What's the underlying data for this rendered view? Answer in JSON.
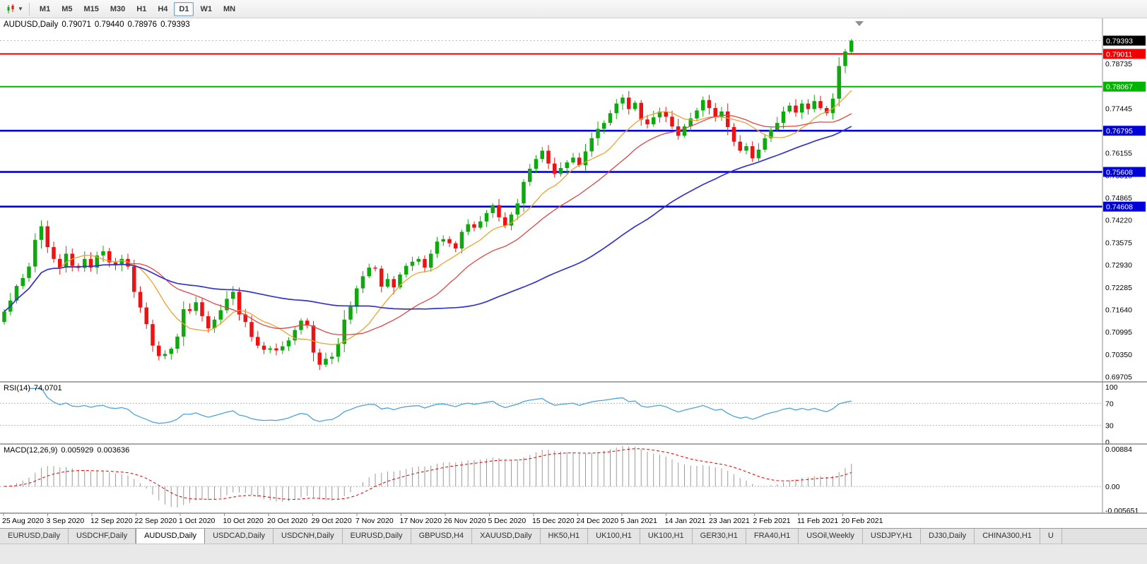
{
  "toolbar": {
    "chart_type_icon": "candlestick-chart-icon",
    "timeframes": [
      "M1",
      "M5",
      "M15",
      "M30",
      "H1",
      "H4",
      "D1",
      "W1",
      "MN"
    ],
    "active_timeframe": "D1"
  },
  "chart": {
    "header": {
      "symbol": "AUDUSD,Daily",
      "open": "0.79071",
      "high": "0.79440",
      "low": "0.78976",
      "close": "0.79393"
    },
    "current_price": {
      "label": "0.79393",
      "box_color": "#000000"
    },
    "price_axis_ticks": [
      "0.79380",
      "0.78735",
      "0.78090",
      "0.77445",
      "0.76800",
      "0.76155",
      "0.75510",
      "0.74865",
      "0.74220",
      "0.73575",
      "0.72930",
      "0.72285",
      "0.71640",
      "0.70995",
      "0.70350",
      "0.69705"
    ],
    "hlines": [
      {
        "label": "0.79011",
        "price": 0.79011,
        "color": "#f00000",
        "thickness": 2
      },
      {
        "label": "0.78067",
        "price": 0.78067,
        "color": "#00b400",
        "thickness": 2
      },
      {
        "label": "0.76795",
        "price": 0.76795,
        "color": "#0000d8",
        "thickness": 2.6
      },
      {
        "label": "0.75608",
        "price": 0.75608,
        "color": "#0000d8",
        "thickness": 2.6
      },
      {
        "label": "0.74608",
        "price": 0.74608,
        "color": "#0000d8",
        "thickness": 2.6
      }
    ],
    "date_labels": [
      "25 Aug 2020",
      "3 Sep 2020",
      "12 Sep 2020",
      "22 Sep 2020",
      "1 Oct 2020",
      "10 Oct 2020",
      "20 Oct 2020",
      "29 Oct 2020",
      "7 Nov 2020",
      "17 Nov 2020",
      "26 Nov 2020",
      "5 Dec 2020",
      "15 Dec 2020",
      "24 Dec 2020",
      "5 Jan 2021",
      "14 Jan 2021",
      "23 Jan 2021",
      "2 Feb 2021",
      "11 Feb 2021",
      "20 Feb 2021"
    ]
  },
  "rsi_panel": {
    "title": "RSI(14)",
    "value": "74.0701",
    "levels": [
      "100",
      "70",
      "30",
      "0"
    ],
    "level_values": [
      100,
      70,
      30,
      0
    ],
    "line_color": "#4da2dc"
  },
  "macd_panel": {
    "title": "MACD(12,26,9)",
    "value_main": "0.005929",
    "value_signal": "0.003636",
    "levels": [
      "0.00884",
      "0.00",
      "-0.005651"
    ],
    "level_values": [
      0.00884,
      0,
      -0.005651
    ],
    "hist_color": "#9a9a9a",
    "signal_color": "#e00000"
  },
  "chart_data": {
    "type": "candlestick",
    "symbol": "AUDUSD",
    "timeframe": "Daily",
    "title": "AUDUSD,Daily",
    "x_labels": [
      "25 Aug 2020",
      "3 Sep 2020",
      "12 Sep 2020",
      "22 Sep 2020",
      "1 Oct 2020",
      "10 Oct 2020",
      "20 Oct 2020",
      "29 Oct 2020",
      "7 Nov 2020",
      "17 Nov 2020",
      "26 Nov 2020",
      "5 Dec 2020",
      "15 Dec 2020",
      "24 Dec 2020",
      "5 Jan 2021",
      "14 Jan 2021",
      "23 Jan 2021",
      "2 Feb 2021",
      "11 Feb 2021",
      "20 Feb 2021"
    ],
    "y_range": [
      0.6955,
      0.80035
    ],
    "first_open": 0.7128,
    "closes": [
      0.7158,
      0.719,
      0.7232,
      0.7255,
      0.7288,
      0.7365,
      0.7404,
      0.7344,
      0.731,
      0.7285,
      0.7325,
      0.729,
      0.7284,
      0.731,
      0.7285,
      0.732,
      0.7332,
      0.73,
      0.7292,
      0.731,
      0.7288,
      0.7215,
      0.717,
      0.7122,
      0.706,
      0.703,
      0.7036,
      0.7051,
      0.7086,
      0.7165,
      0.716,
      0.7185,
      0.7145,
      0.711,
      0.7135,
      0.7162,
      0.7195,
      0.7215,
      0.715,
      0.7128,
      0.7085,
      0.706,
      0.7048,
      0.7052,
      0.7046,
      0.7058,
      0.7075,
      0.7105,
      0.7132,
      0.7118,
      0.704,
      0.7005,
      0.7022,
      0.7028,
      0.7065,
      0.7135,
      0.7172,
      0.7225,
      0.726,
      0.7285,
      0.7282,
      0.723,
      0.7252,
      0.7228,
      0.7265,
      0.729,
      0.7302,
      0.731,
      0.7285,
      0.7325,
      0.736,
      0.7367,
      0.7355,
      0.734,
      0.7388,
      0.741,
      0.74,
      0.7418,
      0.7442,
      0.7465,
      0.743,
      0.7406,
      0.7438,
      0.747,
      0.7532,
      0.757,
      0.7598,
      0.7622,
      0.7585,
      0.7555,
      0.7572,
      0.7588,
      0.7602,
      0.758,
      0.762,
      0.7658,
      0.7685,
      0.7702,
      0.773,
      0.7758,
      0.7775,
      0.7742,
      0.776,
      0.7712,
      0.7698,
      0.7718,
      0.7735,
      0.772,
      0.7692,
      0.7665,
      0.7692,
      0.7715,
      0.7738,
      0.7768,
      0.7745,
      0.772,
      0.7735,
      0.769,
      0.7648,
      0.7622,
      0.7635,
      0.76,
      0.7625,
      0.7658,
      0.7682,
      0.7702,
      0.7735,
      0.7752,
      0.7732,
      0.7758,
      0.7742,
      0.7765,
      0.7745,
      0.773,
      0.7772,
      0.7866,
      0.7908,
      0.79393
    ],
    "last_candle": {
      "open": 0.79071,
      "high": 0.7944,
      "low": 0.78976,
      "close": 0.79393
    },
    "hlines": [
      0.79011,
      0.78067,
      0.76795,
      0.75608,
      0.74608
    ],
    "indicators": {
      "moving_averages": [
        {
          "period": 10,
          "color": "#f2a032"
        },
        {
          "period": 21,
          "color": "#e04545"
        },
        {
          "period": 55,
          "color": "#3434cc"
        }
      ],
      "rsi": {
        "period": 14,
        "last": 74.0701
      },
      "macd": {
        "fast": 12,
        "slow": 26,
        "signal": 9,
        "last_main": 0.005929,
        "last_signal": 0.003636
      }
    },
    "colors": {
      "bull": "#0fa80f",
      "bear": "#ee1212",
      "background": "#ffffff"
    }
  },
  "tabs": [
    {
      "label": "EURUSD,Daily",
      "active": false
    },
    {
      "label": "USDCHF,Daily",
      "active": false
    },
    {
      "label": "AUDUSD,Daily",
      "active": true
    },
    {
      "label": "USDCAD,Daily",
      "active": false
    },
    {
      "label": "USDCNH,Daily",
      "active": false
    },
    {
      "label": "EURUSD,Daily",
      "active": false
    },
    {
      "label": "GBPUSD,H4",
      "active": false
    },
    {
      "label": "XAUUSD,Daily",
      "active": false
    },
    {
      "label": "HK50,H1",
      "active": false
    },
    {
      "label": "UK100,H1",
      "active": false
    },
    {
      "label": "UK100,H1",
      "active": false
    },
    {
      "label": "GER30,H1",
      "active": false
    },
    {
      "label": "FRA40,H1",
      "active": false
    },
    {
      "label": "USOil,Weekly",
      "active": false
    },
    {
      "label": "USDJPY,H1",
      "active": false
    },
    {
      "label": "DJ30,Daily",
      "active": false
    },
    {
      "label": "CHINA300,H1",
      "active": false
    },
    {
      "label": "U",
      "active": false
    }
  ]
}
